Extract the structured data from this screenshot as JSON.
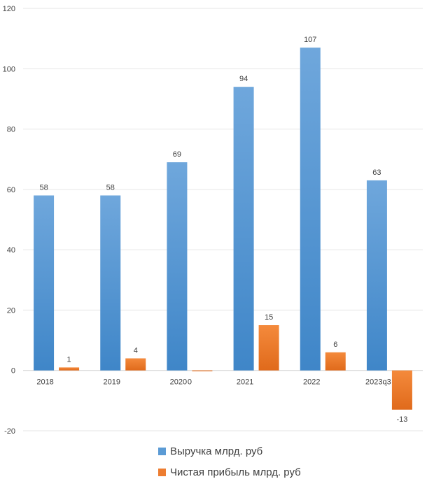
{
  "chart_data": {
    "type": "bar",
    "categories": [
      "2018",
      "2019",
      "2020",
      "2021",
      "2022",
      "2023q3"
    ],
    "series": [
      {
        "name": "Выручка млрд. руб",
        "values": [
          58,
          58,
          69,
          94,
          107,
          63
        ],
        "labels": [
          "58",
          "58",
          "69",
          "94",
          "107",
          "63"
        ],
        "color": "#5B9BD5"
      },
      {
        "name": "Чистая прибыль млрд. руб",
        "values": [
          1,
          4,
          -0.3,
          15,
          6,
          -13
        ],
        "labels": [
          "1",
          "4",
          "0",
          "15",
          "6",
          "-13"
        ],
        "color": "#ED7D31"
      }
    ],
    "y_ticks": [
      "-20",
      "0",
      "20",
      "40",
      "60",
      "80",
      "100",
      "120"
    ],
    "ylim": [
      -20,
      120
    ],
    "grid": true,
    "legend_position": "bottom"
  }
}
